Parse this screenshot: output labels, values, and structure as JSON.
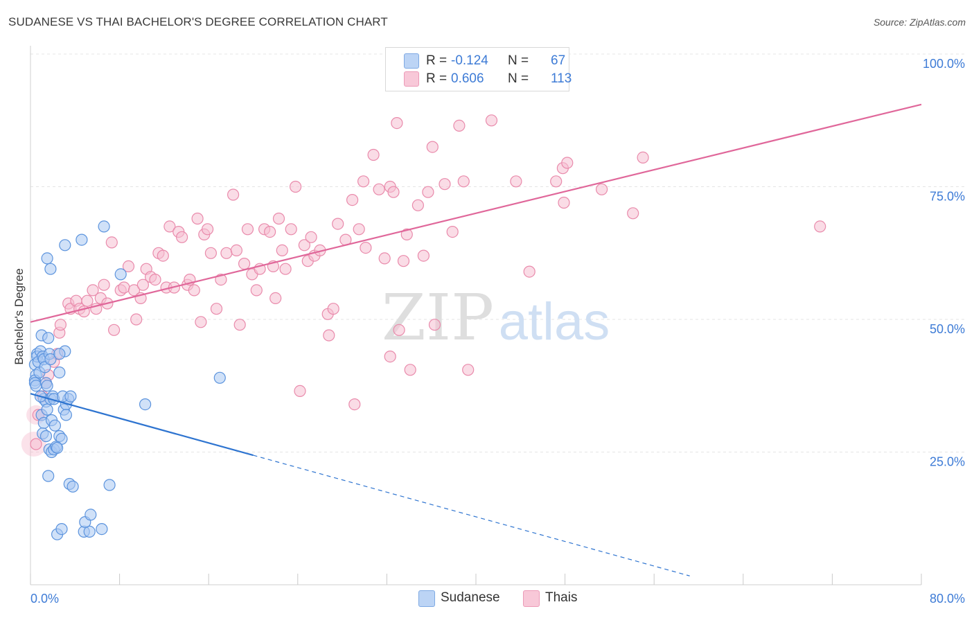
{
  "title": "SUDANESE VS THAI BACHELOR'S DEGREE CORRELATION CHART",
  "source": "Source: ZipAtlas.com",
  "watermark": {
    "zip": "ZIP",
    "atlas": "atlas"
  },
  "legend": {
    "rows": [
      {
        "r_label": "R =",
        "r_value": "-0.124",
        "n_label": "N =",
        "n_value": "67"
      },
      {
        "r_label": "R =",
        "r_value": "0.606",
        "n_label": "N =",
        "n_value": "113"
      }
    ]
  },
  "bottom_legend": [
    "Sudanese",
    "Thais"
  ],
  "colors": {
    "sudanese_fill": "#a9c8f2",
    "sudanese_stroke": "#5b93dd",
    "sudanese_line": "#2e74d0",
    "thai_fill": "#f6bfd1",
    "thai_stroke": "#e98aab",
    "thai_line": "#e0679a",
    "axis_label": "#3d7bd6",
    "grid": "#e4e4e4"
  },
  "chart_data": {
    "type": "scatter",
    "title": "SUDANESE VS THAI BACHELOR'S DEGREE CORRELATION CHART",
    "xlabel": "",
    "ylabel": "Bachelor's Degree",
    "xlim": [
      0,
      80
    ],
    "ylim": [
      0,
      100
    ],
    "x_tick_labels": [
      "0.0%",
      "80.0%"
    ],
    "y_tick_labels": [
      "25.0%",
      "50.0%",
      "75.0%",
      "100.0%"
    ],
    "y_ticks": [
      25,
      50,
      75,
      100
    ],
    "grid": true,
    "legend_position": "top-center",
    "series": [
      {
        "name": "Sudanese",
        "r": -0.124,
        "n": 67,
        "trend": {
          "x0": 0,
          "y0": 36.0,
          "x1": 20,
          "y1": 24.4,
          "dashed_to_x": 59.2
        },
        "points": [
          [
            0.4,
            41.5
          ],
          [
            0.5,
            39.5
          ],
          [
            0.4,
            38.5
          ],
          [
            0.4,
            38.0
          ],
          [
            0.5,
            37.5
          ],
          [
            0.6,
            43.5
          ],
          [
            0.6,
            43.0
          ],
          [
            0.7,
            42.0
          ],
          [
            0.8,
            40.0
          ],
          [
            0.9,
            44.0
          ],
          [
            1.0,
            47.0
          ],
          [
            1.1,
            43.0
          ],
          [
            1.2,
            42.5
          ],
          [
            1.3,
            41.0
          ],
          [
            1.4,
            38.0
          ],
          [
            1.5,
            37.5
          ],
          [
            1.6,
            46.5
          ],
          [
            1.7,
            43.5
          ],
          [
            1.8,
            42.5
          ],
          [
            1.2,
            35.0
          ],
          [
            1.4,
            34.5
          ],
          [
            1.8,
            35.0
          ],
          [
            2.0,
            35.5
          ],
          [
            2.1,
            35.0
          ],
          [
            1.0,
            32.0
          ],
          [
            1.2,
            30.5
          ],
          [
            1.5,
            33.0
          ],
          [
            1.9,
            31.0
          ],
          [
            1.1,
            28.5
          ],
          [
            1.4,
            28.0
          ],
          [
            2.2,
            30.0
          ],
          [
            2.6,
            28.0
          ],
          [
            2.8,
            27.5
          ],
          [
            1.7,
            25.5
          ],
          [
            1.9,
            25.0
          ],
          [
            2.1,
            25.5
          ],
          [
            2.3,
            26.0
          ],
          [
            2.4,
            25.8
          ],
          [
            3.0,
            33.0
          ],
          [
            3.2,
            34.0
          ],
          [
            3.4,
            35.0
          ],
          [
            3.2,
            32.0
          ],
          [
            2.6,
            40.0
          ],
          [
            3.1,
            44.0
          ],
          [
            1.6,
            20.5
          ],
          [
            3.5,
            19.0
          ],
          [
            3.8,
            18.5
          ],
          [
            7.1,
            18.8
          ],
          [
            2.4,
            9.5
          ],
          [
            2.8,
            10.5
          ],
          [
            4.8,
            10.0
          ],
          [
            5.3,
            10.0
          ],
          [
            4.9,
            11.8
          ],
          [
            5.4,
            13.2
          ],
          [
            6.4,
            10.5
          ],
          [
            6.6,
            67.5
          ],
          [
            4.6,
            65.0
          ],
          [
            3.1,
            64.0
          ],
          [
            1.5,
            61.5
          ],
          [
            1.8,
            59.5
          ],
          [
            8.1,
            58.5
          ],
          [
            10.3,
            34.0
          ],
          [
            17.0,
            39.0
          ],
          [
            2.9,
            35.5
          ],
          [
            2.6,
            43.5
          ],
          [
            0.9,
            35.5
          ],
          [
            3.6,
            35.5
          ]
        ]
      },
      {
        "name": "Thais",
        "r": 0.606,
        "n": 113,
        "trend": {
          "x0": 0,
          "y0": 49.5,
          "x1": 80,
          "y1": 90.5
        },
        "points": [
          [
            0.5,
            26.5
          ],
          [
            0.7,
            32.0
          ],
          [
            1.1,
            35.5
          ],
          [
            1.4,
            38.0
          ],
          [
            1.6,
            39.5
          ],
          [
            2.1,
            42.0
          ],
          [
            2.4,
            43.5
          ],
          [
            2.6,
            47.5
          ],
          [
            2.7,
            49.0
          ],
          [
            3.4,
            53.0
          ],
          [
            3.6,
            52.0
          ],
          [
            4.1,
            53.5
          ],
          [
            4.4,
            52.0
          ],
          [
            4.8,
            51.5
          ],
          [
            5.1,
            53.5
          ],
          [
            5.6,
            55.5
          ],
          [
            5.9,
            52.0
          ],
          [
            6.3,
            54.0
          ],
          [
            6.6,
            56.5
          ],
          [
            6.9,
            53.0
          ],
          [
            7.5,
            48.0
          ],
          [
            7.3,
            64.5
          ],
          [
            8.1,
            55.5
          ],
          [
            8.4,
            56.0
          ],
          [
            8.8,
            60.0
          ],
          [
            9.3,
            55.5
          ],
          [
            9.5,
            50.0
          ],
          [
            9.9,
            54.0
          ],
          [
            10.1,
            56.5
          ],
          [
            10.4,
            59.5
          ],
          [
            10.8,
            58.0
          ],
          [
            11.2,
            57.5
          ],
          [
            11.5,
            62.5
          ],
          [
            11.9,
            62.0
          ],
          [
            12.2,
            56.0
          ],
          [
            12.5,
            67.5
          ],
          [
            12.9,
            56.0
          ],
          [
            13.3,
            66.5
          ],
          [
            13.6,
            65.5
          ],
          [
            14.1,
            56.5
          ],
          [
            14.3,
            57.5
          ],
          [
            14.7,
            55.5
          ],
          [
            15.0,
            69.0
          ],
          [
            15.3,
            49.5
          ],
          [
            15.6,
            66.0
          ],
          [
            15.9,
            67.0
          ],
          [
            16.2,
            62.5
          ],
          [
            16.7,
            52.0
          ],
          [
            17.1,
            57.5
          ],
          [
            17.6,
            62.5
          ],
          [
            18.2,
            73.5
          ],
          [
            18.5,
            63.0
          ],
          [
            18.8,
            49.0
          ],
          [
            19.2,
            60.5
          ],
          [
            19.5,
            67.0
          ],
          [
            19.9,
            58.5
          ],
          [
            20.3,
            55.5
          ],
          [
            20.6,
            59.5
          ],
          [
            21.0,
            67.0
          ],
          [
            21.5,
            66.5
          ],
          [
            21.8,
            60.0
          ],
          [
            22.3,
            69.0
          ],
          [
            22.6,
            63.0
          ],
          [
            22.9,
            59.5
          ],
          [
            23.4,
            67.0
          ],
          [
            23.8,
            75.0
          ],
          [
            24.2,
            36.5
          ],
          [
            24.6,
            64.0
          ],
          [
            24.9,
            61.0
          ],
          [
            25.2,
            65.5
          ],
          [
            25.5,
            62.0
          ],
          [
            26.0,
            63.0
          ],
          [
            26.7,
            51.0
          ],
          [
            27.2,
            52.0
          ],
          [
            27.6,
            68.0
          ],
          [
            28.3,
            65.0
          ],
          [
            28.9,
            72.5
          ],
          [
            29.1,
            34.0
          ],
          [
            29.9,
            76.0
          ],
          [
            30.1,
            63.5
          ],
          [
            30.8,
            81.0
          ],
          [
            31.3,
            74.5
          ],
          [
            31.8,
            61.5
          ],
          [
            32.3,
            75.0
          ],
          [
            32.6,
            74.0
          ],
          [
            32.9,
            87.0
          ],
          [
            33.1,
            48.0
          ],
          [
            33.5,
            61.0
          ],
          [
            33.8,
            66.0
          ],
          [
            34.1,
            40.5
          ],
          [
            34.8,
            71.5
          ],
          [
            35.7,
            74.0
          ],
          [
            36.1,
            82.5
          ],
          [
            36.3,
            49.0
          ],
          [
            37.2,
            75.5
          ],
          [
            37.9,
            66.5
          ],
          [
            38.5,
            86.5
          ],
          [
            38.9,
            76.0
          ],
          [
            39.3,
            40.5
          ],
          [
            41.4,
            87.5
          ],
          [
            43.6,
            76.0
          ],
          [
            44.8,
            59.0
          ],
          [
            47.2,
            76.0
          ],
          [
            47.8,
            78.5
          ],
          [
            47.9,
            72.0
          ],
          [
            48.2,
            79.5
          ],
          [
            51.3,
            74.5
          ],
          [
            54.1,
            70.0
          ],
          [
            55.0,
            80.5
          ],
          [
            70.9,
            67.5
          ],
          [
            32.3,
            43.0
          ],
          [
            35.3,
            62.0
          ],
          [
            29.5,
            67.0
          ],
          [
            26.8,
            47.0
          ],
          [
            22.0,
            54.0
          ]
        ]
      }
    ]
  }
}
